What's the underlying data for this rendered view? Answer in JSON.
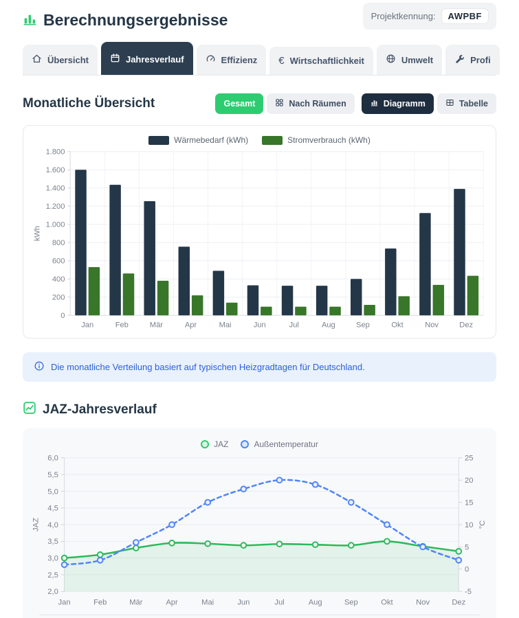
{
  "header": {
    "title": "Berechnungsergebnisse",
    "project_label": "Projektkennung:",
    "project_code": "AWPBF"
  },
  "tabs": [
    {
      "label": "Übersicht",
      "icon": "home-icon",
      "active": false
    },
    {
      "label": "Jahresverlauf",
      "icon": "calendar-icon",
      "active": true
    },
    {
      "label": "Effizienz",
      "icon": "gauge-icon",
      "active": false
    },
    {
      "label": "Wirtschaftlichkeit",
      "icon": "euro-icon",
      "active": false
    },
    {
      "label": "Umwelt",
      "icon": "globe-icon",
      "active": false
    },
    {
      "label": "Profi",
      "icon": "wrench-icon",
      "active": false
    }
  ],
  "monthly_section": {
    "title": "Monatliche Übersicht",
    "buttons": {
      "gesamt": "Gesamt",
      "nach_raeumen": "Nach Räumen",
      "diagramm": "Diagramm",
      "tabelle": "Tabelle"
    }
  },
  "info_banner": {
    "text": "Die monatliche Verteilung basiert auf typischen Heizgradtagen für Deutschland."
  },
  "jaz_section": {
    "title": "JAZ-Jahresverlauf"
  },
  "colors": {
    "accent_green": "#2ecc71",
    "tab_navy": "#2d3e50",
    "button_dark": "#1e2d3f",
    "bar_navy": "#243748",
    "bar_green": "#38762a",
    "line_green": "#2eb85c",
    "line_blue": "#4f86f7",
    "info_blue": "#2c5fd6"
  },
  "chart_data": [
    {
      "type": "bar",
      "title": "Monatliche Übersicht",
      "categories": [
        "Jan",
        "Feb",
        "Mär",
        "Apr",
        "Mai",
        "Jun",
        "Jul",
        "Aug",
        "Sep",
        "Okt",
        "Nov",
        "Dez"
      ],
      "series": [
        {
          "name": "Wärmebedarf (kWh)",
          "color": "#243748",
          "values": [
            1600,
            1435,
            1255,
            755,
            490,
            330,
            325,
            325,
            400,
            735,
            1125,
            1390
          ]
        },
        {
          "name": "Stromverbrauch (kWh)",
          "color": "#38762a",
          "values": [
            530,
            460,
            380,
            220,
            140,
            95,
            95,
            95,
            115,
            210,
            335,
            435
          ]
        }
      ],
      "xlabel": "",
      "ylabel": "kWh",
      "ylim": [
        0,
        1800
      ],
      "ytick_step": 200,
      "grid": true,
      "legend_position": "top"
    },
    {
      "type": "line",
      "title": "JAZ-Jahresverlauf",
      "categories": [
        "Jan",
        "Feb",
        "Mär",
        "Apr",
        "Mai",
        "Jun",
        "Jul",
        "Aug",
        "Sep",
        "Okt",
        "Nov",
        "Dez"
      ],
      "series": [
        {
          "name": "JAZ",
          "axis": "left",
          "color": "#2eb85c",
          "style": "solid",
          "area_fill": true,
          "values": [
            3.0,
            3.1,
            3.3,
            3.45,
            3.43,
            3.38,
            3.42,
            3.4,
            3.38,
            3.5,
            3.35,
            3.2
          ]
        },
        {
          "name": "Außentemperatur",
          "axis": "right",
          "color": "#4f86f7",
          "style": "dashed",
          "area_fill": false,
          "values": [
            1,
            2,
            6,
            10,
            15,
            18,
            20,
            19,
            15,
            10,
            5,
            2
          ]
        }
      ],
      "left_axis": {
        "label": "JAZ",
        "min": 2.0,
        "max": 6.0,
        "step": 0.5,
        "decimal_comma": true
      },
      "right_axis": {
        "label": "°C",
        "min": -5,
        "max": 25,
        "step": 5
      },
      "grid": true,
      "legend_position": "top"
    }
  ]
}
